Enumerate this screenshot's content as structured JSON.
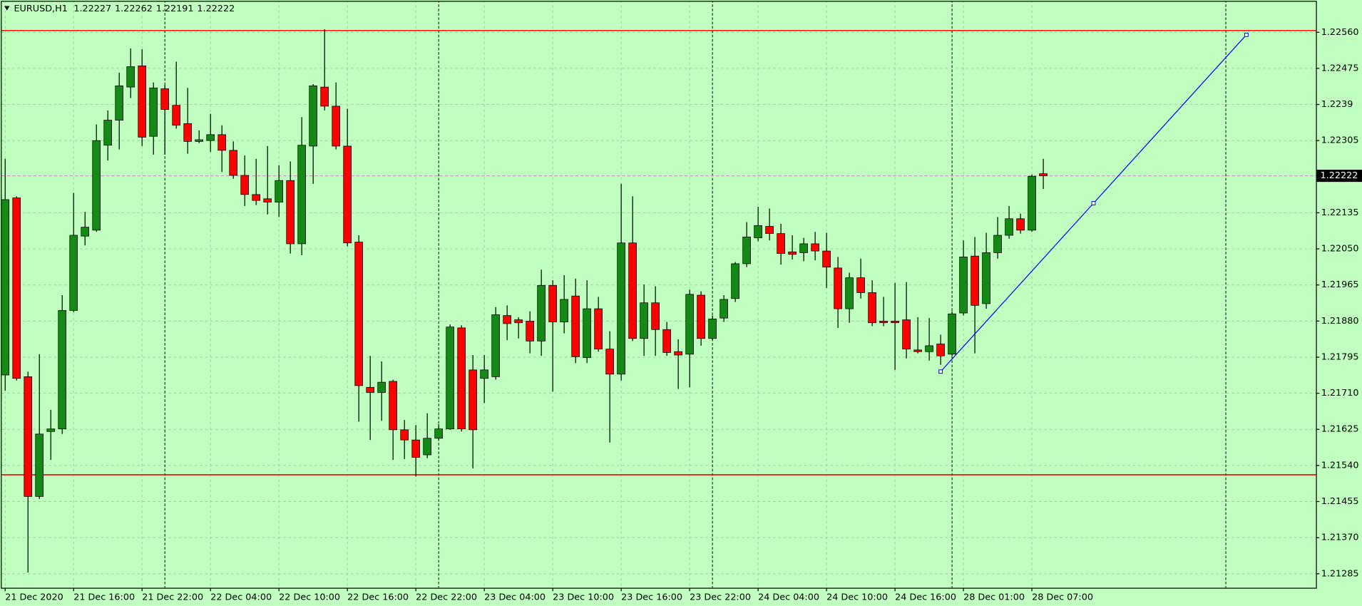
{
  "chart_data": {
    "type": "candlestick",
    "title": "EURUSD,H1",
    "up_color": "#138a13",
    "down_color": "#ff0000",
    "wick_color": "#000000",
    "background": "#c1ffc1",
    "grid": true,
    "grid_color": "#9fcf9f",
    "open": [
      1.21753,
      1.2217,
      1.21749,
      1.21467,
      1.2162,
      1.21626,
      1.21905,
      1.2208,
      1.22094,
      1.22294,
      1.22353,
      1.22431,
      1.22481,
      1.22315,
      1.22427,
      1.22388,
      1.22345,
      1.22303,
      1.22305,
      1.22319,
      1.22282,
      1.22223,
      1.22178,
      1.22168,
      1.2216,
      1.22211,
      1.22062,
      1.22292,
      1.22431,
      1.22386,
      1.22292,
      1.22066,
      1.21724,
      1.21712,
      1.21738,
      1.21624,
      1.216,
      1.21565,
      1.21604,
      1.21626,
      1.21864,
      1.21765,
      1.21745,
      1.21749,
      1.21893,
      1.21883,
      1.2188,
      1.21833,
      1.21964,
      1.21878,
      1.21939,
      1.21794,
      1.21909,
      1.21814,
      1.21755,
      1.22064,
      1.21839,
      1.21923,
      1.2186,
      1.21808,
      1.21802,
      1.21941,
      1.21839,
      1.21887,
      1.21933,
      1.22015,
      1.22076,
      1.22103,
      1.22086,
      1.22043,
      1.22041,
      1.22062,
      1.22045,
      1.22005,
      1.21909,
      1.21982,
      1.21947,
      1.2188,
      1.2188,
      1.21883,
      1.21812,
      1.21808,
      1.21826,
      1.21802,
      1.21899,
      1.22033,
      1.21921,
      1.22041,
      1.22082,
      1.22121,
      1.22094,
      1.22227
    ],
    "high": [
      1.22262,
      1.22174,
      1.21761,
      1.21802,
      1.21671,
      1.21941,
      1.22182,
      1.22137,
      1.22343,
      1.22376,
      1.22465,
      1.22522,
      1.2252,
      1.22442,
      1.22436,
      1.22491,
      1.22429,
      1.22329,
      1.22368,
      1.22341,
      1.22303,
      1.2227,
      1.22262,
      1.22292,
      1.22247,
      1.22256,
      1.2236,
      1.22438,
      1.22567,
      1.22442,
      1.2238,
      1.22082,
      1.21798,
      1.21785,
      1.21742,
      1.21647,
      1.21635,
      1.21663,
      1.21637,
      1.21872,
      1.2187,
      1.218,
      1.218,
      1.21913,
      1.21917,
      1.21889,
      1.21903,
      1.22001,
      1.21976,
      1.21988,
      1.2198,
      1.21976,
      1.21937,
      1.21856,
      1.22203,
      1.22174,
      1.21966,
      1.21962,
      1.21878,
      1.21837,
      1.21954,
      1.2195,
      1.21893,
      1.21941,
      1.22019,
      1.22113,
      1.22149,
      1.22145,
      1.22109,
      1.22082,
      1.22076,
      1.2209,
      1.22088,
      1.22031,
      1.21994,
      1.22027,
      1.21976,
      1.21937,
      1.2197,
      1.21972,
      1.21889,
      1.21887,
      1.21848,
      1.21903,
      1.2207,
      1.22078,
      1.22088,
      1.22125,
      1.22151,
      1.22133,
      1.22225,
      1.22262
    ],
    "low": [
      1.21716,
      1.2174,
      1.21288,
      1.21461,
      1.21553,
      1.21614,
      1.21901,
      1.22058,
      1.2209,
      1.22258,
      1.22284,
      1.22405,
      1.22292,
      1.22272,
      1.22272,
      1.22333,
      1.22274,
      1.22299,
      1.22278,
      1.22231,
      1.22215,
      1.22151,
      1.22153,
      1.22131,
      1.22125,
      1.22039,
      1.22035,
      1.22203,
      1.22376,
      1.22284,
      1.22056,
      1.21643,
      1.216,
      1.21645,
      1.21553,
      1.21555,
      1.21514,
      1.21557,
      1.216,
      1.21624,
      1.2162,
      1.21533,
      1.21687,
      1.21742,
      1.21835,
      1.21839,
      1.21804,
      1.21798,
      1.21714,
      1.21851,
      1.21781,
      1.21781,
      1.21808,
      1.21594,
      1.2174,
      1.21833,
      1.21798,
      1.21798,
      1.21798,
      1.2172,
      1.21724,
      1.21822,
      1.21835,
      1.21878,
      1.21925,
      1.22007,
      1.22068,
      1.2207,
      1.22013,
      1.22025,
      1.22021,
      1.22023,
      1.21958,
      1.21864,
      1.21876,
      1.21933,
      1.21868,
      1.21868,
      1.21765,
      1.21792,
      1.21804,
      1.21787,
      1.21777,
      1.21798,
      1.21893,
      1.21804,
      1.21909,
      1.22027,
      1.22074,
      1.22086,
      1.2209,
      1.22191
    ],
    "close": [
      1.22166,
      1.21745,
      1.21467,
      1.21614,
      1.21626,
      1.21905,
      1.22082,
      1.22101,
      1.22305,
      1.22353,
      1.22434,
      1.22479,
      1.22313,
      1.22429,
      1.22378,
      1.22341,
      1.22303,
      1.22307,
      1.22319,
      1.22282,
      1.22223,
      1.22178,
      1.22164,
      1.2216,
      1.22211,
      1.22062,
      1.22294,
      1.22434,
      1.22386,
      1.22292,
      1.22064,
      1.21728,
      1.21712,
      1.21736,
      1.21624,
      1.216,
      1.21559,
      1.21604,
      1.21626,
      1.21866,
      1.21626,
      1.21624,
      1.21765,
      1.21895,
      1.21874,
      1.21876,
      1.21833,
      1.21964,
      1.21878,
      1.21931,
      1.21796,
      1.21909,
      1.21814,
      1.21755,
      1.22064,
      1.21839,
      1.21923,
      1.2186,
      1.21806,
      1.218,
      1.21943,
      1.21839,
      1.21885,
      1.21931,
      1.22015,
      1.22078,
      1.22105,
      1.22086,
      1.22039,
      1.22037,
      1.22062,
      1.22045,
      1.22007,
      1.21909,
      1.21982,
      1.21947,
      1.21876,
      1.21876,
      1.21876,
      1.21814,
      1.21808,
      1.21822,
      1.21798,
      1.21897,
      1.22031,
      1.21917,
      1.22041,
      1.22082,
      1.22121,
      1.22094,
      1.22221,
      1.22222
    ],
    "xlim": [
      -0.3,
      114.9
    ],
    "xticks": [
      {
        "value": 0,
        "label": "21 Dec 2020"
      },
      {
        "value": 6,
        "label": "21 Dec 16:00"
      },
      {
        "value": 12,
        "label": "21 Dec 22:00"
      },
      {
        "value": 18,
        "label": "22 Dec 04:00"
      },
      {
        "value": 24,
        "label": "22 Dec 10:00"
      },
      {
        "value": 30,
        "label": "22 Dec 16:00"
      },
      {
        "value": 36,
        "label": "22 Dec 22:00"
      },
      {
        "value": 42,
        "label": "23 Dec 04:00"
      },
      {
        "value": 48,
        "label": "23 Dec 10:00"
      },
      {
        "value": 54,
        "label": "23 Dec 16:00"
      },
      {
        "value": 60,
        "label": "23 Dec 22:00"
      },
      {
        "value": 66,
        "label": "24 Dec 04:00"
      },
      {
        "value": 72,
        "label": "24 Dec 10:00"
      },
      {
        "value": 78,
        "label": "24 Dec 16:00"
      },
      {
        "value": 84,
        "label": "28 Dec 01:00"
      },
      {
        "value": 90,
        "label": "28 Dec 07:00"
      }
    ],
    "day_separators": [
      14,
      38,
      62,
      83,
      107
    ],
    "ylim": [
      1.21252,
      1.22636
    ],
    "yticks": [
      {
        "value": 1.2256,
        "label": "1.22560"
      },
      1.22475,
      1.2239,
      1.22305,
      1.22135,
      {
        "value": 1.2205,
        "label": "1.22050"
      },
      1.21965,
      {
        "value": 1.2188,
        "label": "1.21880"
      },
      1.21795,
      {
        "value": 1.2171,
        "label": "1.21710"
      },
      1.21625,
      {
        "value": 1.2154,
        "label": "1.21540"
      },
      1.21455,
      {
        "value": 1.2137,
        "label": "1.21370"
      },
      1.21285
    ],
    "hlines": [
      {
        "value": 1.22564,
        "color": "#ff0000"
      },
      {
        "value": 1.21518,
        "color": "#ff0000"
      }
    ],
    "bid_line_color": "#c8a0c8",
    "trendline": {
      "x": [
        82,
        108.8
      ],
      "y": [
        1.21761,
        1.22554
      ],
      "color": "#0000ff"
    }
  }
}
